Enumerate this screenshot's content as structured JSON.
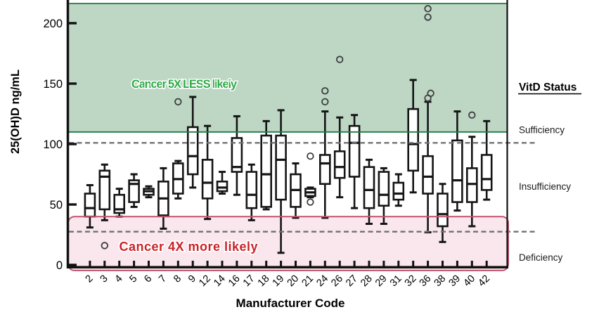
{
  "chart_data": {
    "type": "box",
    "title": "",
    "xlabel": "Manufacturer Code",
    "ylabel": "25(OH)D ng/mL",
    "ylim": [
      0,
      219
    ],
    "yticks": [
      0,
      50,
      100,
      150,
      200
    ],
    "grid": false,
    "categories": [
      "2",
      "3",
      "4",
      "5",
      "6",
      "7",
      "8",
      "9",
      "12",
      "14",
      "16",
      "17",
      "18",
      "19",
      "20",
      "21",
      "24",
      "26",
      "27",
      "28",
      "29",
      "31",
      "32",
      "36",
      "38",
      "39",
      "40",
      "42"
    ],
    "series": [
      {
        "code": "2",
        "min": 31,
        "q1": 40,
        "median": 47,
        "q3": 59,
        "max": 66,
        "outliers": []
      },
      {
        "code": "3",
        "min": 37,
        "q1": 46,
        "median": 73,
        "q3": 78,
        "max": 83,
        "outliers": [
          16
        ]
      },
      {
        "code": "4",
        "min": 40,
        "q1": 43,
        "median": 46,
        "q3": 58,
        "max": 63,
        "outliers": []
      },
      {
        "code": "5",
        "min": 48,
        "q1": 52,
        "median": 67,
        "q3": 70,
        "max": 75,
        "outliers": []
      },
      {
        "code": "6",
        "min": 56,
        "q1": 58,
        "median": 61,
        "q3": 63,
        "max": 65,
        "outliers": []
      },
      {
        "code": "7",
        "min": 30,
        "q1": 41,
        "median": 55,
        "q3": 69,
        "max": 80,
        "outliers": []
      },
      {
        "code": "8",
        "min": 55,
        "q1": 59,
        "median": 71,
        "q3": 84,
        "max": 86,
        "outliers": [
          135
        ]
      },
      {
        "code": "9",
        "min": 64,
        "q1": 75,
        "median": 90,
        "q3": 114,
        "max": 139,
        "outliers": []
      },
      {
        "code": "12",
        "min": 38,
        "q1": 55,
        "median": 68,
        "q3": 87,
        "max": 115,
        "outliers": []
      },
      {
        "code": "14",
        "min": 59,
        "q1": 61,
        "median": 64,
        "q3": 69,
        "max": 77,
        "outliers": []
      },
      {
        "code": "16",
        "min": 58,
        "q1": 77,
        "median": 81,
        "q3": 105,
        "max": 123,
        "outliers": []
      },
      {
        "code": "17",
        "min": 37,
        "q1": 47,
        "median": 58,
        "q3": 77,
        "max": 83,
        "outliers": []
      },
      {
        "code": "18",
        "min": 46,
        "q1": 48,
        "median": 75,
        "q3": 107,
        "max": 119,
        "outliers": []
      },
      {
        "code": "19",
        "min": 10,
        "q1": 54,
        "median": 87,
        "q3": 107,
        "max": 128,
        "outliers": []
      },
      {
        "code": "20",
        "min": 39,
        "q1": 48,
        "median": 62,
        "q3": 75,
        "max": 84,
        "outliers": []
      },
      {
        "code": "21",
        "min": 56,
        "q1": 57,
        "median": 60,
        "q3": 63,
        "max": 64,
        "outliers": [
          52,
          90
        ]
      },
      {
        "code": "24",
        "min": 39,
        "q1": 67,
        "median": 84,
        "q3": 91,
        "max": 127,
        "outliers": [
          135,
          144
        ]
      },
      {
        "code": "26",
        "min": 56,
        "q1": 72,
        "median": 81,
        "q3": 94,
        "max": 122,
        "outliers": [
          170
        ]
      },
      {
        "code": "27",
        "min": 47,
        "q1": 73,
        "median": 101,
        "q3": 115,
        "max": 124,
        "outliers": []
      },
      {
        "code": "28",
        "min": 34,
        "q1": 47,
        "median": 62,
        "q3": 81,
        "max": 87,
        "outliers": []
      },
      {
        "code": "29",
        "min": 34,
        "q1": 49,
        "median": 58,
        "q3": 77,
        "max": 80,
        "outliers": []
      },
      {
        "code": "31",
        "min": 49,
        "q1": 54,
        "median": 59,
        "q3": 68,
        "max": 75,
        "outliers": []
      },
      {
        "code": "32",
        "min": 60,
        "q1": 78,
        "median": 100,
        "q3": 129,
        "max": 153,
        "outliers": []
      },
      {
        "code": "36",
        "min": 27,
        "q1": 59,
        "median": 73,
        "q3": 90,
        "max": 135,
        "outliers": [
          138,
          142,
          205,
          212
        ]
      },
      {
        "code": "38",
        "min": 19,
        "q1": 32,
        "median": 42,
        "q3": 59,
        "max": 67,
        "outliers": []
      },
      {
        "code": "39",
        "min": 45,
        "q1": 52,
        "median": 70,
        "q3": 103,
        "max": 127,
        "outliers": []
      },
      {
        "code": "40",
        "min": 32,
        "q1": 52,
        "median": 67,
        "q3": 80,
        "max": 106,
        "outliers": [
          124
        ]
      },
      {
        "code": "42",
        "min": 54,
        "q1": 62,
        "median": 71,
        "q3": 91,
        "max": 119,
        "outliers": []
      }
    ],
    "zones": [
      {
        "id": "sufficiency-zone",
        "annotation": "Cancer 5X LESS likely",
        "value_from": 110,
        "value_to": 216.3,
        "fill": "#bdd7c4",
        "border": "#1e7c45",
        "text_color": "#2fab47"
      },
      {
        "id": "deficiency-zone",
        "annotation": "Cancer 4X more likely",
        "value_from": -4.6,
        "value_to": 40,
        "fill": "#f9e7ed",
        "border": "#c2536f",
        "text_color": "#cb2128"
      }
    ],
    "dashed_thresholds": [
      101,
      27.5
    ],
    "right_panel": {
      "header": "VitD Status",
      "labels": [
        {
          "text": "Sufficiency",
          "value": 112
        },
        {
          "text": "Insufficiency",
          "value": 65
        },
        {
          "text": "Deficiency",
          "value": 6.5
        }
      ]
    }
  },
  "colors": {
    "axis": "#111111",
    "box_stroke": "#151515",
    "box_fill": "#ffffff",
    "outlier_stroke": "#3d3d3d",
    "dashed_line": "#6f7072",
    "background": "#ffffff"
  }
}
